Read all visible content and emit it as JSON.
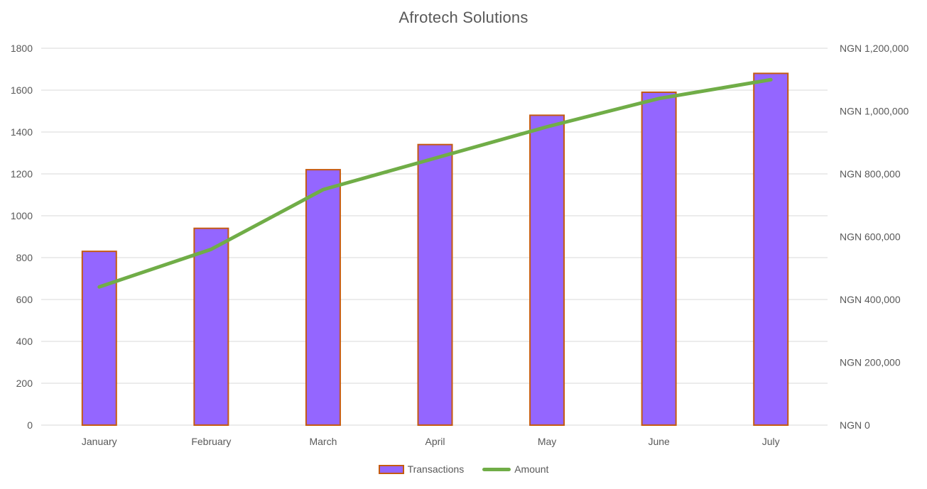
{
  "chart_data": {
    "type": "combo-bar-line",
    "title": "Afrotech Solutions",
    "categories": [
      "January",
      "February",
      "March",
      "April",
      "May",
      "June",
      "July"
    ],
    "series": [
      {
        "name": "Transactions",
        "type": "bar",
        "axis": "left",
        "values": [
          830,
          940,
          1220,
          1340,
          1480,
          1590,
          1680
        ],
        "fill": "#9466FF",
        "border": "#C55A11"
      },
      {
        "name": "Amount",
        "type": "line",
        "axis": "right",
        "values": [
          440000,
          560000,
          750000,
          850000,
          950000,
          1040000,
          1100000
        ],
        "color": "#70AD47"
      }
    ],
    "left_axis": {
      "min": 0,
      "max": 1800,
      "step": 200,
      "tick_labels": [
        "0",
        "200",
        "400",
        "600",
        "800",
        "1000",
        "1200",
        "1400",
        "1600",
        "1800"
      ]
    },
    "right_axis": {
      "min": 0,
      "max": 1200000,
      "step": 200000,
      "currency": "NGN",
      "tick_labels": [
        "NGN 0",
        "NGN 200,000",
        "NGN 400,000",
        "NGN 600,000",
        "NGN 800,000",
        "NGN 1,000,000",
        "NGN 1,200,000"
      ]
    },
    "grid": true,
    "grid_color": "#D9D9D9",
    "text_color": "#595959",
    "legend_position": "bottom"
  }
}
